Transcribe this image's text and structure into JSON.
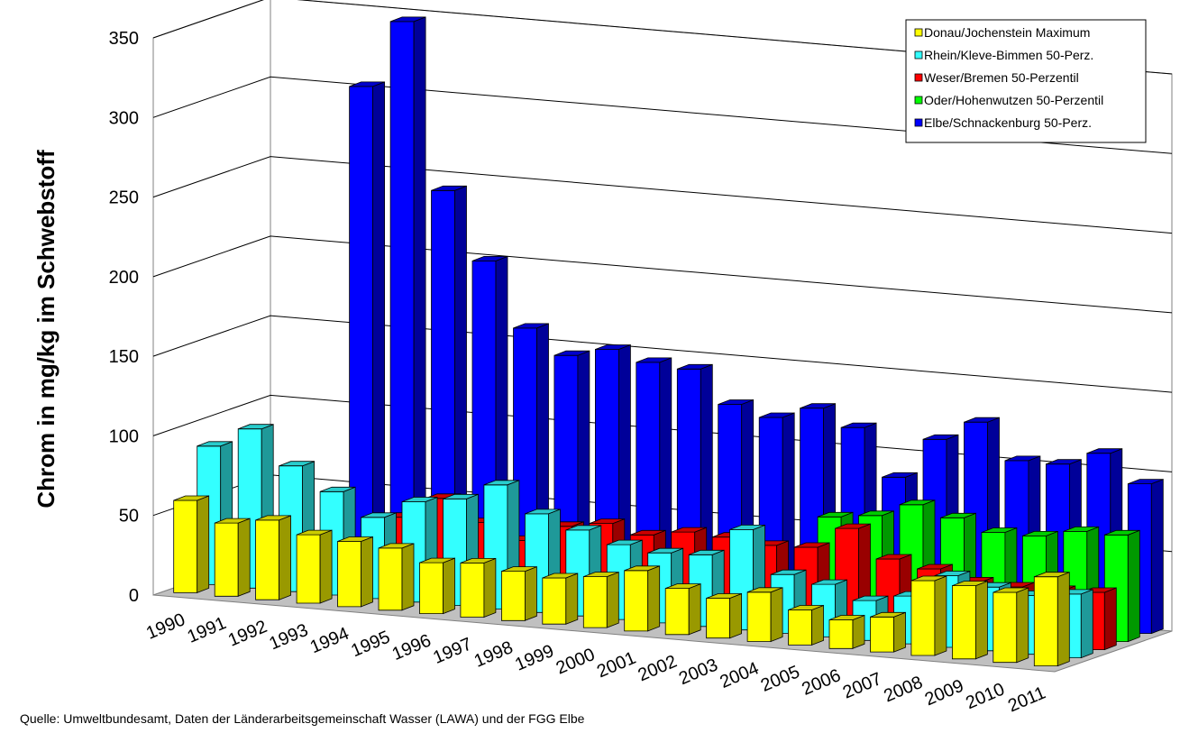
{
  "chart_data": {
    "type": "bar",
    "subtype": "3d-clustered-bar",
    "title": "",
    "xlabel": "",
    "ylabel": "Chrom in mg/kg im Schwebstoff",
    "ylim": [
      0,
      350
    ],
    "yticks": [
      0,
      50,
      100,
      150,
      200,
      250,
      300,
      350
    ],
    "grid": true,
    "legend_position": "top-right",
    "categories": [
      "1990",
      "1991",
      "1992",
      "1993",
      "1994",
      "1995",
      "1996",
      "1997",
      "1998",
      "1999",
      "2000",
      "2001",
      "2002",
      "2003",
      "2004",
      "2005",
      "2006",
      "2007",
      "2008",
      "2009",
      "2010",
      "2011"
    ],
    "series": [
      {
        "name": "Donau/Jochenstein Maximum",
        "color": "#ffff00",
        "values": [
          58,
          46,
          50,
          43,
          41,
          39,
          32,
          34,
          31,
          29,
          32,
          38,
          29,
          25,
          31,
          22,
          18,
          22,
          47,
          46,
          44,
          56
        ]
      },
      {
        "name": "Rhein/Kleve-Bimmen 50-Perz.",
        "color": "#33ffff",
        "values": [
          87,
          100,
          79,
          65,
          51,
          63,
          67,
          78,
          62,
          54,
          47,
          44,
          45,
          63,
          37,
          33,
          25,
          30,
          45,
          40,
          37,
          40
        ]
      },
      {
        "name": "Weser/Bremen 50-Perzentil",
        "color": "#ff0000",
        "values": [
          null,
          null,
          null,
          null,
          46,
          60,
          47,
          38,
          49,
          53,
          48,
          52,
          51,
          48,
          49,
          63,
          46,
          42,
          36,
          35,
          35,
          36
        ]
      },
      {
        "name": "Oder/Hohenwutzen 50-Perzentil",
        "color": "#00ff00",
        "values": [
          null,
          null,
          null,
          null,
          null,
          null,
          null,
          null,
          null,
          null,
          null,
          null,
          null,
          null,
          63,
          66,
          75,
          69,
          62,
          62,
          67,
          67
        ]
      },
      {
        "name": "Elbe/Schnackenburg 50-Perz.",
        "color": "#0000ff",
        "values": [
          null,
          null,
          302,
          345,
          241,
          199,
          159,
          144,
          150,
          144,
          142,
          122,
          116,
          124,
          114,
          85,
          111,
          124,
          102,
          102,
          111,
          94
        ]
      }
    ]
  },
  "source_text": "Quelle: Umweltbundesamt, Daten der Länderarbeitsgemeinschaft Wasser (LAWA) und der FGG Elbe"
}
